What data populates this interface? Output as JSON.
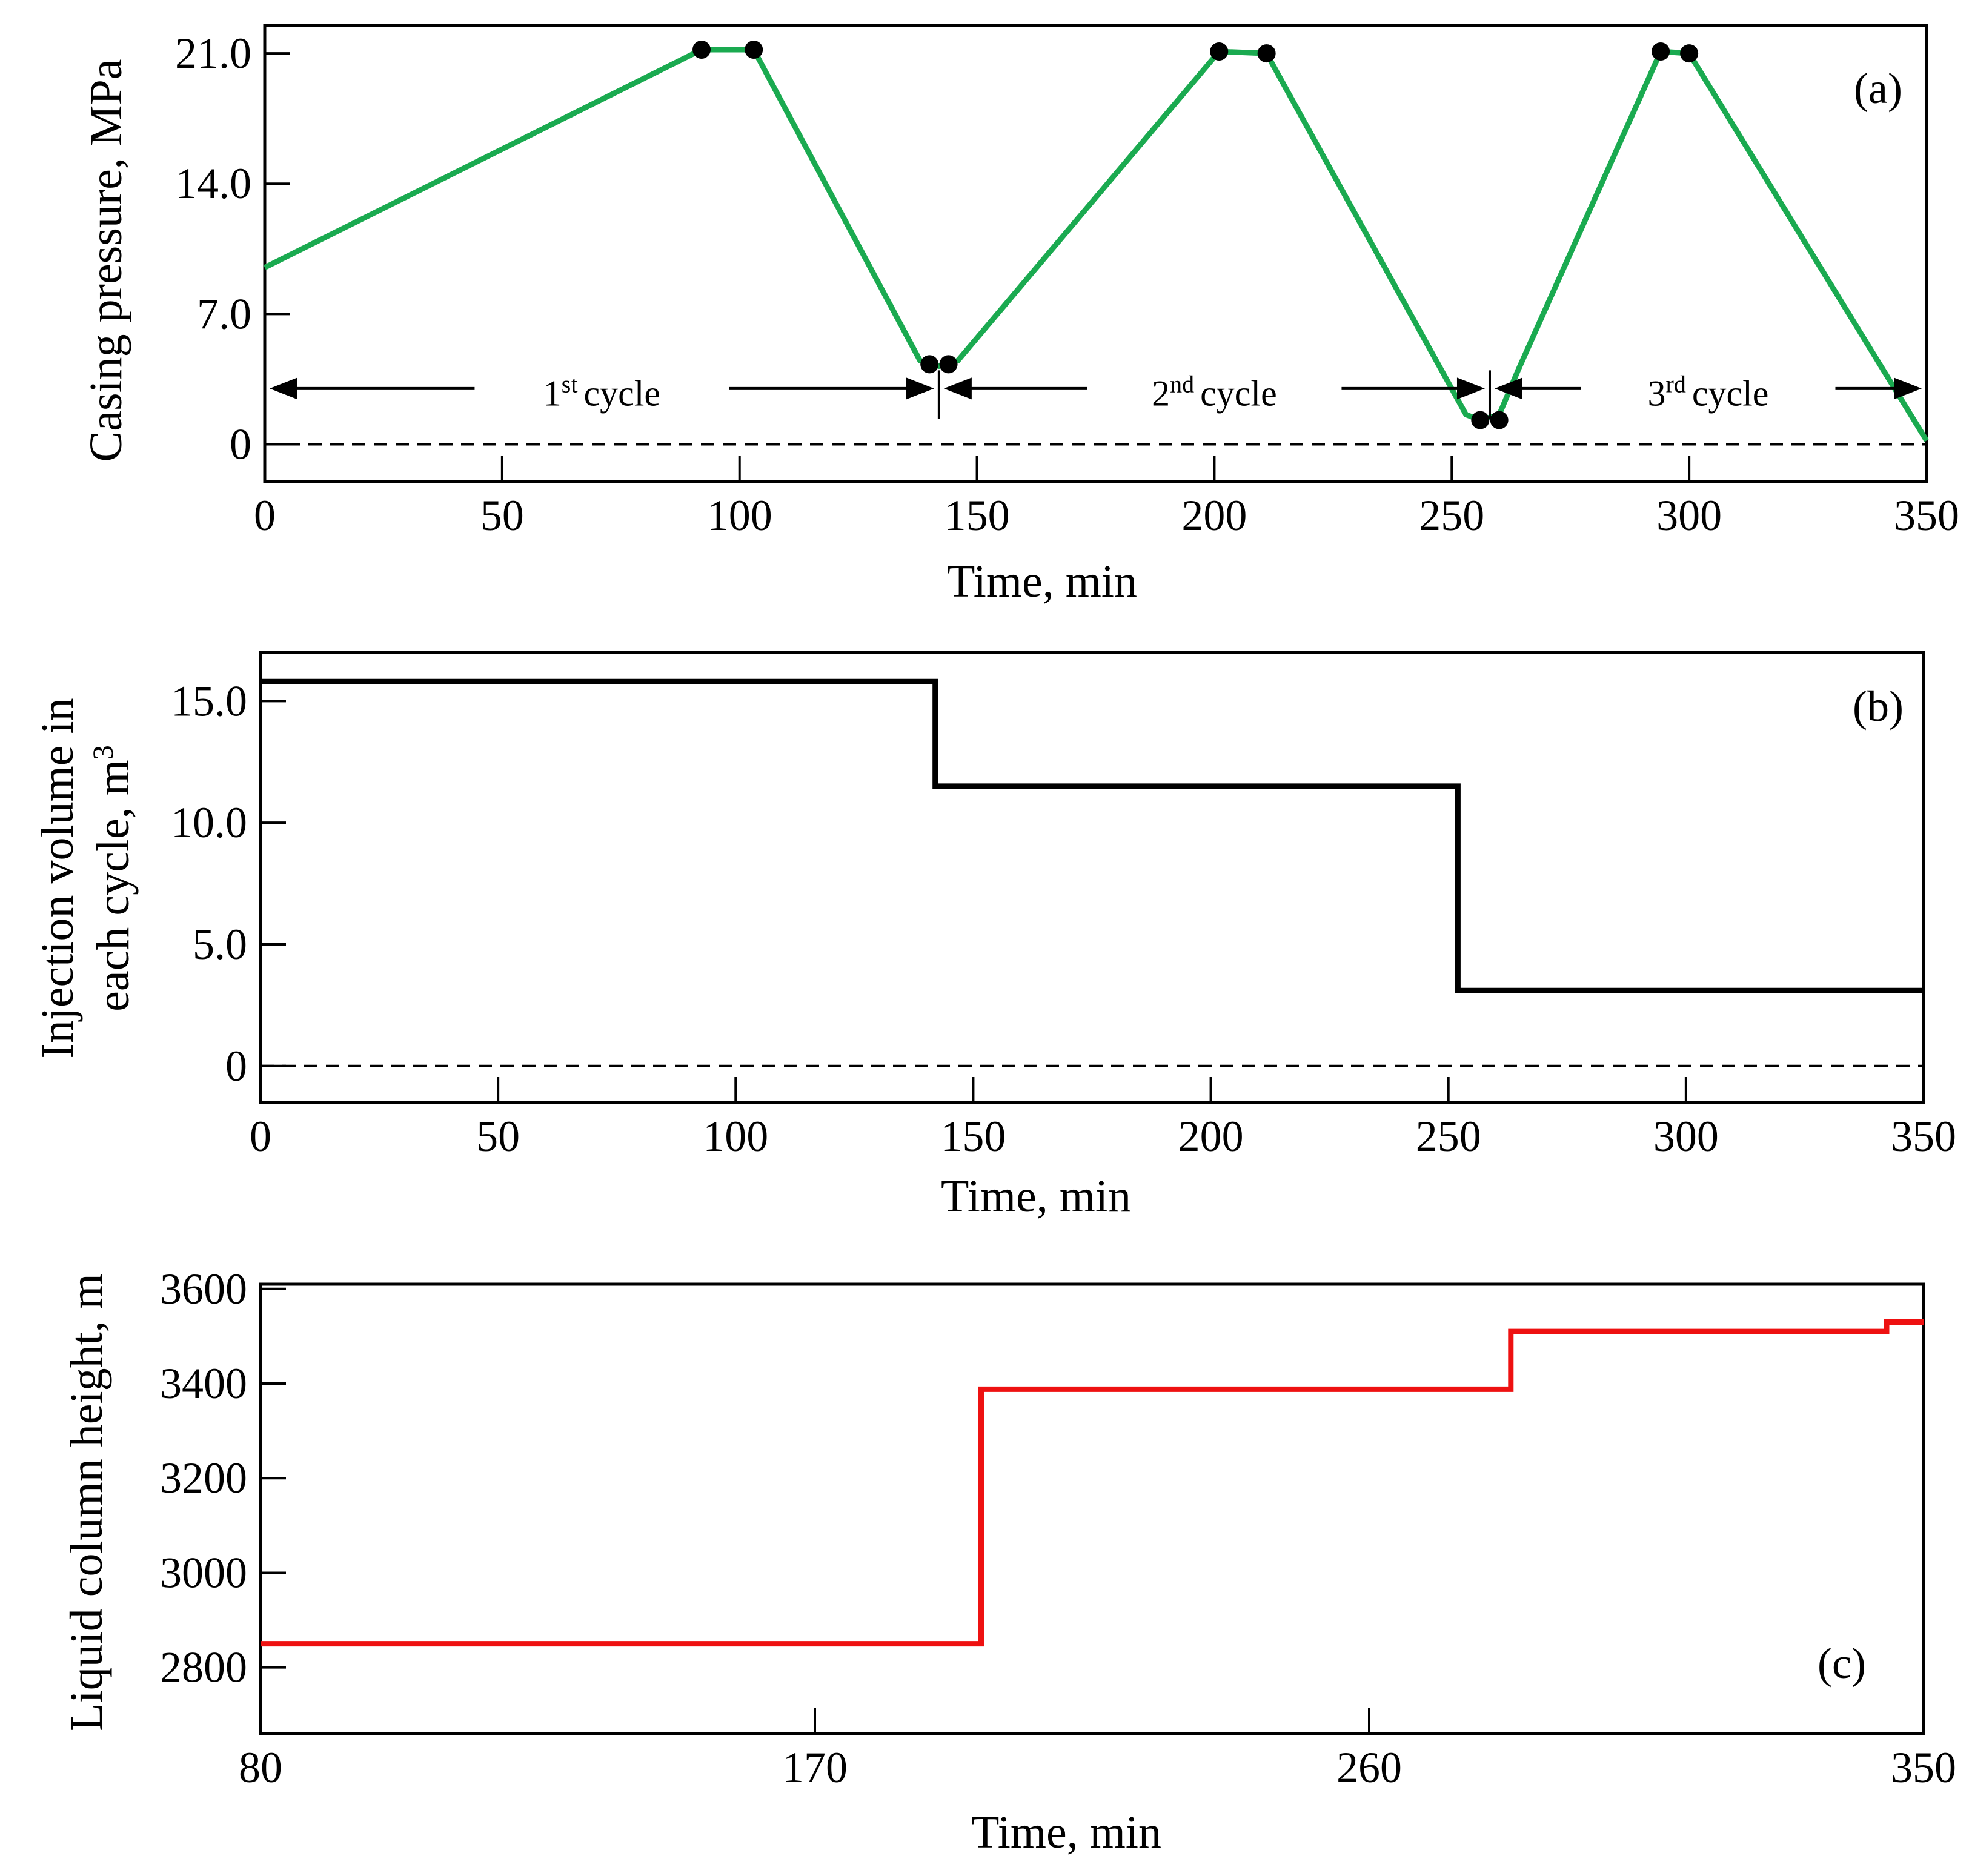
{
  "chart_data": [
    {
      "id": "a",
      "type": "line",
      "panel_label": "(a)",
      "xlabel": "Time, min",
      "ylabel": "Casing pressure, MPa",
      "xlim": [
        0,
        350
      ],
      "ylim": [
        -2,
        22.5
      ],
      "xticks": [
        0,
        50,
        100,
        150,
        200,
        250,
        300,
        350
      ],
      "yticks": [
        {
          "value": 0,
          "label": "0"
        },
        {
          "value": 7,
          "label": "7.0"
        },
        {
          "value": 14,
          "label": "14.0"
        },
        {
          "value": 21,
          "label": "21.0"
        }
      ],
      "reference_line": {
        "value": 0,
        "style": "dashed"
      },
      "series": [
        {
          "name": "Casing pressure",
          "color": "#1aaa50",
          "x": [
            0,
            92,
            103,
            138,
            142,
            146,
            201,
            211,
            253,
            256,
            260,
            264,
            294,
            300,
            350
          ],
          "y": [
            9.5,
            21.2,
            21.2,
            4.5,
            4.2,
            4.5,
            21.1,
            21.0,
            1.6,
            1.3,
            1.6,
            4.0,
            21.1,
            21.0,
            0.2
          ]
        }
      ],
      "markers": {
        "color": "#000000",
        "x": [
          92,
          103,
          140,
          144,
          201,
          211,
          256,
          260,
          294,
          300
        ],
        "y": [
          21.2,
          21.2,
          4.3,
          4.3,
          21.1,
          21.0,
          1.3,
          1.3,
          21.1,
          21.0
        ]
      },
      "cycles": [
        {
          "num": "1",
          "sup": "st",
          "word": "cycle",
          "start": 0,
          "end": 142
        },
        {
          "num": "2",
          "sup": "nd",
          "word": "cycle",
          "start": 142,
          "end": 258
        },
        {
          "num": "3",
          "sup": "rd",
          "word": "cycle",
          "start": 258,
          "end": 350
        }
      ],
      "cycle_arrow_y": 3.0
    },
    {
      "id": "b",
      "type": "line",
      "panel_label": "(b)",
      "xlabel": "Time, min",
      "ylabel_line1": "Injection volume in",
      "ylabel_line2": "each cycle, m",
      "ylabel_sup": "3",
      "xlim": [
        0,
        350
      ],
      "ylim": [
        -1.5,
        17
      ],
      "xticks": [
        0,
        50,
        100,
        150,
        200,
        250,
        300,
        350
      ],
      "yticks": [
        {
          "value": 0,
          "label": "0"
        },
        {
          "value": 5,
          "label": "5.0"
        },
        {
          "value": 10,
          "label": "10.0"
        },
        {
          "value": 15,
          "label": "15.0"
        }
      ],
      "reference_line": {
        "value": 0,
        "style": "dashed"
      },
      "series": [
        {
          "name": "Injection volume",
          "color": "#000000",
          "x": [
            0,
            142,
            142,
            252,
            252,
            350
          ],
          "y": [
            15.8,
            15.8,
            11.5,
            11.5,
            3.1,
            3.1
          ]
        }
      ]
    },
    {
      "id": "c",
      "type": "line",
      "panel_label": "(c)",
      "xlabel": "Time, min",
      "ylabel": "Liquid  column height, m",
      "xlim": [
        80,
        350
      ],
      "ylim": [
        2660,
        3610
      ],
      "xticks": [
        80,
        170,
        260,
        350
      ],
      "yticks": [
        {
          "value": 2800,
          "label": "2800"
        },
        {
          "value": 3000,
          "label": "3000"
        },
        {
          "value": 3200,
          "label": "3200"
        },
        {
          "value": 3400,
          "label": "3400"
        },
        {
          "value": 3600,
          "label": "3600"
        }
      ],
      "series": [
        {
          "name": "Liquid column height",
          "color": "#ee1111",
          "x": [
            80,
            197,
            197,
            283,
            283,
            344,
            344,
            350
          ],
          "y": [
            2850,
            2850,
            3388,
            3388,
            3510,
            3510,
            3530,
            3530
          ]
        }
      ]
    }
  ]
}
